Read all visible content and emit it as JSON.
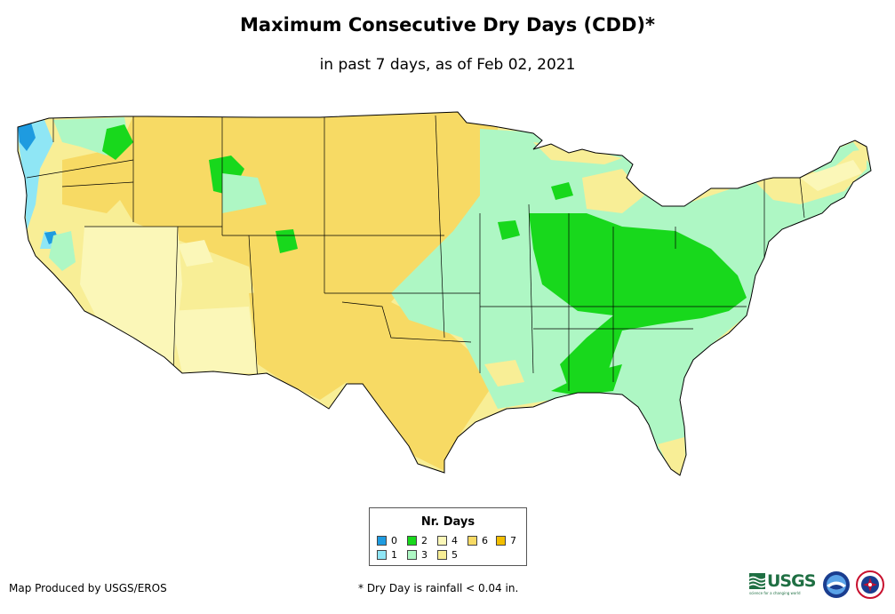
{
  "title": "Maximum Consecutive Dry Days (CDD)*",
  "subtitle": "in past 7 days, as of Feb 02, 2021",
  "legend": {
    "title": "Nr. Days",
    "items": [
      {
        "label": "0",
        "color": "#1e9be0"
      },
      {
        "label": "1",
        "color": "#8fe6f5"
      },
      {
        "label": "2",
        "color": "#18d81c"
      },
      {
        "label": "3",
        "color": "#aef7c4"
      },
      {
        "label": "4",
        "color": "#fbf7b8"
      },
      {
        "label": "5",
        "color": "#f8ee96"
      },
      {
        "label": "6",
        "color": "#f7da64"
      },
      {
        "label": "7",
        "color": "#f2be00"
      }
    ]
  },
  "credit": "Map Produced by USGS/EROS",
  "footnote": "* Dry Day is rainfall < 0.04 in.",
  "logos": {
    "usgs": "USGS",
    "usgs_tagline": "science for a changing world",
    "noaa": "noaa-seal-icon",
    "nws": "nws-seal-icon"
  }
}
